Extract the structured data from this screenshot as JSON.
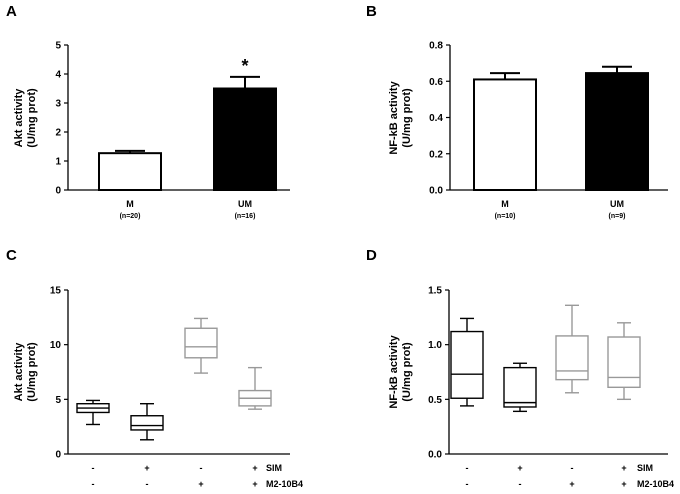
{
  "chart_data": [
    {
      "panel": "A",
      "type": "bar",
      "ylabel_line1": "Akt activity",
      "ylabel_line2": "(U/mg prot)",
      "ylim": [
        0,
        5
      ],
      "yticks": [
        "0",
        "1",
        "2",
        "3",
        "4",
        "5"
      ],
      "categories": [
        {
          "label": "M",
          "n": "(n=20)",
          "value": 1.27,
          "error": 0.08,
          "fill": "#ffffff"
        },
        {
          "label": "UM",
          "n": "(n=16)",
          "value": 3.5,
          "error": 0.4,
          "fill": "#000000"
        }
      ],
      "annotation": "*"
    },
    {
      "panel": "B",
      "type": "bar",
      "ylabel_line1": "NF-kB activity",
      "ylabel_line2": "(U/mg prot)",
      "ylim": [
        0,
        0.8
      ],
      "yticks": [
        "0.0",
        "0.2",
        "0.4",
        "0.6",
        "0.8"
      ],
      "categories": [
        {
          "label": "M",
          "n": "(n=10)",
          "value": 0.61,
          "error": 0.035,
          "fill": "#ffffff"
        },
        {
          "label": "UM",
          "n": "(n=9)",
          "value": 0.645,
          "error": 0.035,
          "fill": "#000000"
        }
      ]
    },
    {
      "panel": "C",
      "type": "box",
      "ylabel_line1": "Akt activity",
      "ylabel_line2": "(U/mg prot)",
      "ylim": [
        0,
        15
      ],
      "yticks": [
        "0",
        "5",
        "10",
        "15"
      ],
      "row_labels": [
        "SIM",
        "M2-10B4"
      ],
      "groups": [
        {
          "sim": "-",
          "m2": "-",
          "min": 2.7,
          "q1": 3.8,
          "median": 4.2,
          "q3": 4.6,
          "max": 4.9,
          "color": "#000000"
        },
        {
          "sim": "+",
          "m2": "-",
          "min": 1.3,
          "q1": 2.2,
          "median": 2.6,
          "q3": 3.5,
          "max": 4.6,
          "color": "#000000"
        },
        {
          "sim": "-",
          "m2": "+",
          "min": 7.4,
          "q1": 8.8,
          "median": 9.8,
          "q3": 11.5,
          "max": 12.4,
          "color": "#999999"
        },
        {
          "sim": "+",
          "m2": "+",
          "min": 4.1,
          "q1": 4.4,
          "median": 5.1,
          "q3": 5.8,
          "max": 7.9,
          "color": "#999999"
        }
      ]
    },
    {
      "panel": "D",
      "type": "box",
      "ylabel_line1": "NF-kB activity",
      "ylabel_line2": "(U/mg prot)",
      "ylim": [
        0,
        1.5
      ],
      "yticks": [
        "0.0",
        "0.5",
        "1.0",
        "1.5"
      ],
      "row_labels": [
        "SIM",
        "M2-10B4"
      ],
      "groups": [
        {
          "sim": "-",
          "m2": "-",
          "min": 0.44,
          "q1": 0.51,
          "median": 0.73,
          "q3": 1.12,
          "max": 1.24,
          "color": "#000000"
        },
        {
          "sim": "+",
          "m2": "-",
          "min": 0.39,
          "q1": 0.43,
          "median": 0.47,
          "q3": 0.79,
          "max": 0.83,
          "color": "#000000"
        },
        {
          "sim": "-",
          "m2": "+",
          "min": 0.56,
          "q1": 0.68,
          "median": 0.76,
          "q3": 1.08,
          "max": 1.36,
          "color": "#999999"
        },
        {
          "sim": "+",
          "m2": "+",
          "min": 0.5,
          "q1": 0.61,
          "median": 0.7,
          "q3": 1.07,
          "max": 1.2,
          "color": "#999999"
        }
      ]
    }
  ]
}
